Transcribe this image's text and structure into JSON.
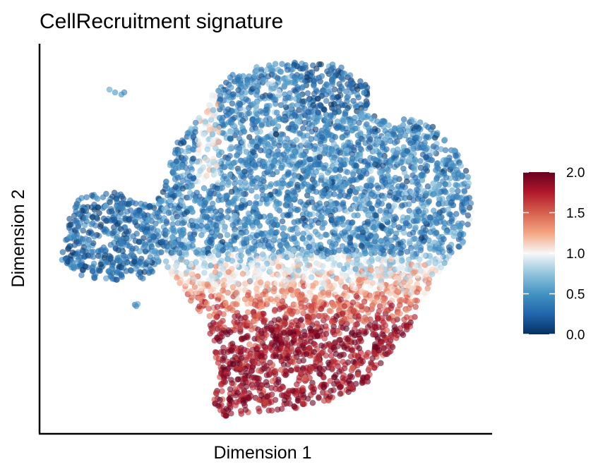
{
  "chart_data": {
    "type": "scatter",
    "title": "CellRecruitment signature",
    "xlabel": "Dimension 1",
    "ylabel": "Dimension 2",
    "axis_ticks": "none",
    "grid": false,
    "color_variable": {
      "range": [
        0.0,
        2.0
      ],
      "ticks": [
        "0.0",
        "0.5",
        "1.0",
        "1.5",
        "2.0"
      ],
      "tick_values": [
        0.0,
        0.5,
        1.0,
        1.5,
        2.0
      ],
      "palette": [
        "#053061",
        "#2166ac",
        "#4393c3",
        "#92c5de",
        "#f7f7f7",
        "#f4a582",
        "#d6604d",
        "#b2182b",
        "#67001f"
      ],
      "legend_placement": "right"
    },
    "point_style": {
      "opacity": 0.6
    },
    "description_free_data_note": ""
  }
}
